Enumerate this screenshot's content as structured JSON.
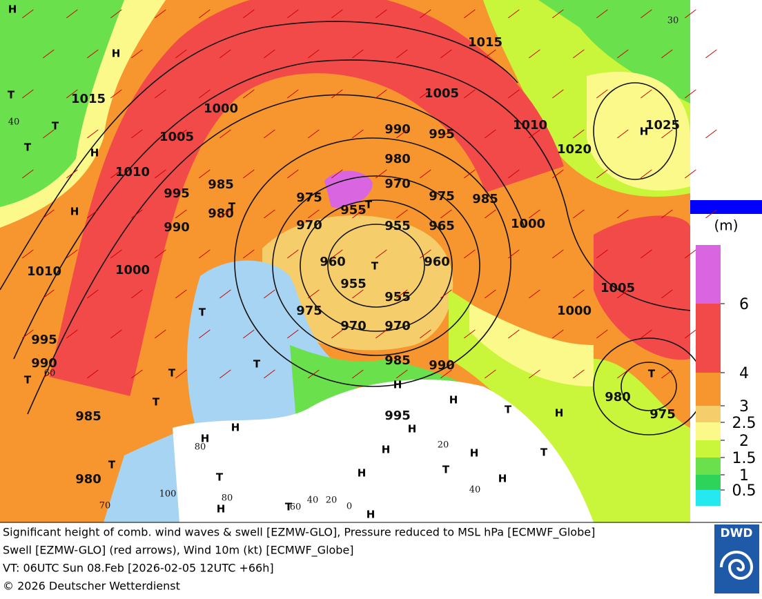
{
  "map": {
    "isobar_labels": [
      1015,
      1005,
      1000,
      990,
      995,
      1010,
      1025,
      1015,
      1005,
      1020,
      980,
      1010,
      985,
      970,
      995,
      975,
      955,
      975,
      985,
      980,
      970,
      955,
      965,
      1000,
      990,
      960,
      960,
      1010,
      1000,
      955,
      1005,
      955,
      975,
      1000,
      970,
      970,
      995,
      990,
      985,
      990,
      980,
      995,
      975,
      985,
      980
    ],
    "centers": [
      "H",
      "T",
      "T",
      "T",
      "H",
      "H",
      "H",
      "T",
      "T",
      "T",
      "H",
      "T",
      "T",
      "T",
      "T",
      "T",
      "T",
      "H",
      "H",
      "H",
      "H",
      "T",
      "H",
      "H",
      "T",
      "H",
      "H",
      "T",
      "H",
      "H",
      "T",
      "H",
      "H",
      "T",
      "T"
    ],
    "wind_labels": [
      30,
      40,
      60,
      80,
      20,
      40,
      100,
      80,
      40,
      20,
      0,
      70,
      60
    ],
    "colorbar": {
      "unit": "(m)",
      "ticks": [
        6,
        4,
        3,
        2.5,
        2,
        1.5,
        1,
        0.5
      ],
      "colors": [
        "#d966e0",
        "#f24949",
        "#f7952e",
        "#f5cd6b",
        "#fbf98a",
        "#c9f53a",
        "#6be04d",
        "#2ed45a",
        "#26e8f0"
      ]
    }
  },
  "footer": {
    "lines": [
      "Significant height of comb. wind waves & swell [EZMW-GLO], Pressure reduced to MSL hPa [ECMWF_Globe]",
      "Swell [EZMW-GLO] (red arrows), Wind 10m (kt) [ECMWF_Globe]",
      "VT: 06UTC Sun 08.Feb [2026-02-05 12UTC +66h]",
      "© 2026 Deutscher Wetterdienst"
    ],
    "logo": "DWD"
  }
}
